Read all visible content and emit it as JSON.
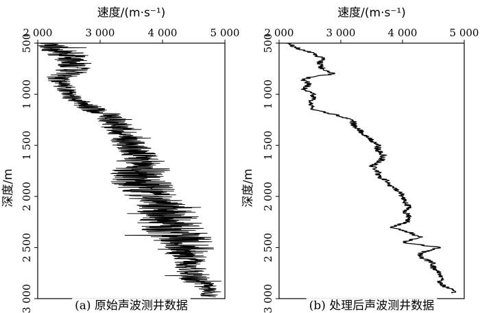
{
  "chart_data": [
    {
      "type": "line",
      "orientation": "depth-vertical",
      "caption": "(a) 原始声波测井数据",
      "xlabel": "速度/(m·s⁻¹)",
      "ylabel": "深度/m",
      "x_axis_position": "top",
      "xlim": [
        2000,
        5000
      ],
      "ylim": [
        500,
        3000
      ],
      "y_inverted": true,
      "xticks": [
        2000,
        3000,
        4000,
        5000
      ],
      "xtick_labels": [
        "2 000",
        "3 000",
        "4 000",
        "5 000"
      ],
      "yticks": [
        500,
        1000,
        1500,
        2000,
        2500,
        3000
      ],
      "ytick_labels": [
        "500",
        "1 000",
        "1 500",
        "2 000",
        "2 500",
        "3 000"
      ],
      "grid": false,
      "noise": "high",
      "series": [
        {
          "depth": [
            500,
            600,
            700,
            800,
            850,
            900,
            950,
            1000,
            1050,
            1100,
            1150,
            1200,
            1300,
            1400,
            1500,
            1600,
            1700,
            1800,
            1900,
            2000,
            2100,
            2200,
            2300,
            2400,
            2500,
            2600,
            2700,
            2800,
            2900,
            2950
          ],
          "velocity": [
            2150,
            2450,
            2600,
            2500,
            2300,
            2450,
            2450,
            2500,
            2600,
            2750,
            2900,
            3150,
            3250,
            3400,
            3500,
            3600,
            3700,
            3600,
            3700,
            3800,
            4000,
            4100,
            4100,
            4300,
            4400,
            4400,
            4450,
            4500,
            4700,
            4750
          ],
          "spread": [
            180,
            350,
            280,
            300,
            200,
            160,
            160,
            150,
            150,
            200,
            220,
            250,
            260,
            280,
            300,
            320,
            450,
            500,
            480,
            420,
            450,
            500,
            550,
            480,
            450,
            300,
            250,
            280,
            200,
            150
          ]
        }
      ]
    },
    {
      "type": "line",
      "orientation": "depth-vertical",
      "caption": "(b) 处理后声波测井数据",
      "xlabel": "速度/(m·s⁻¹)",
      "ylabel": "深度/m",
      "x_axis_position": "top",
      "xlim": [
        2000,
        5000
      ],
      "ylim": [
        500,
        3000
      ],
      "y_inverted": true,
      "xticks": [
        2000,
        3000,
        4000,
        5000
      ],
      "xtick_labels": [
        "2 000",
        "3 000",
        "4 000",
        "5 000"
      ],
      "yticks": [
        500,
        1000,
        1500,
        2000,
        2500,
        3000
      ],
      "ytick_labels": [
        "500",
        "1 000",
        "1 500",
        "2 000",
        "2 500",
        "3 000"
      ],
      "grid": false,
      "noise": "low",
      "series": [
        {
          "depth": [
            500,
            550,
            600,
            650,
            700,
            750,
            800,
            830,
            860,
            900,
            950,
            1000,
            1050,
            1100,
            1150,
            1200,
            1250,
            1300,
            1350,
            1400,
            1450,
            1500,
            1550,
            1600,
            1650,
            1700,
            1750,
            1800,
            1850,
            1900,
            1950,
            2000,
            2050,
            2100,
            2150,
            2200,
            2250,
            2300,
            2350,
            2400,
            2450,
            2500,
            2550,
            2600,
            2650,
            2700,
            2750,
            2800,
            2850,
            2900,
            2950
          ],
          "velocity": [
            2150,
            2300,
            2550,
            2700,
            2650,
            2700,
            2900,
            2500,
            2400,
            2500,
            2400,
            2550,
            2550,
            2500,
            2550,
            2900,
            3200,
            3200,
            3300,
            3400,
            3500,
            3600,
            3600,
            3700,
            3650,
            3500,
            3600,
            3600,
            3750,
            3800,
            3950,
            4000,
            4050,
            4100,
            4050,
            4100,
            4100,
            3800,
            4100,
            4300,
            4000,
            4600,
            4300,
            4300,
            4500,
            4500,
            4600,
            4650,
            4600,
            4750,
            4850
          ]
        }
      ]
    }
  ]
}
